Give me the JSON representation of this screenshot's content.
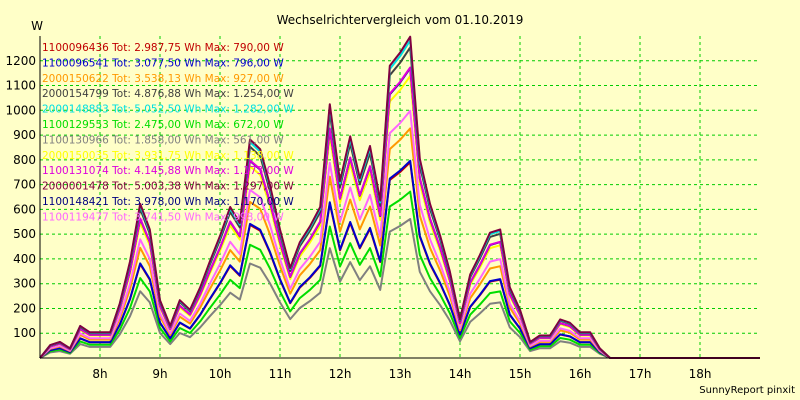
{
  "chart_data": {
    "type": "line",
    "title": "Wechselrichtervergleich vom 01.10.2019",
    "ylabel": "W",
    "credit": "SunnyReport pinxit",
    "ylim": [
      0,
      1300
    ],
    "xlim": [
      7.0,
      19.0
    ],
    "y_ticks": [
      100,
      200,
      300,
      400,
      500,
      600,
      700,
      800,
      900,
      1000,
      1100,
      1200
    ],
    "x_ticks": [
      {
        "label": "8h",
        "value": 8.0
      },
      {
        "label": "9h",
        "value": 9.0
      },
      {
        "label": "10h",
        "value": 10.0
      },
      {
        "label": "11h",
        "value": 11.0
      },
      {
        "label": "12h",
        "value": 12.0
      },
      {
        "label": "13h",
        "value": 13.0
      },
      {
        "label": "14h",
        "value": 14.0
      },
      {
        "label": "15h",
        "value": 15.0
      },
      {
        "label": "16h",
        "value": 16.0
      },
      {
        "label": "17h",
        "value": 17.0
      },
      {
        "label": "18h",
        "value": 18.0
      }
    ],
    "grid": true,
    "legend_position": "top-left",
    "x": [
      7.0,
      7.17,
      7.33,
      7.5,
      7.67,
      7.83,
      8.0,
      8.17,
      8.33,
      8.5,
      8.67,
      8.83,
      9.0,
      9.17,
      9.33,
      9.5,
      9.67,
      9.83,
      10.0,
      10.17,
      10.33,
      10.5,
      10.67,
      10.83,
      11.0,
      11.17,
      11.33,
      11.5,
      11.67,
      11.83,
      12.0,
      12.17,
      12.33,
      12.5,
      12.67,
      12.83,
      13.0,
      13.17,
      13.33,
      13.5,
      13.67,
      13.83,
      14.0,
      14.17,
      14.33,
      14.5,
      14.67,
      14.83,
      15.0,
      15.17,
      15.33,
      15.5,
      15.67,
      15.83,
      16.0,
      16.17,
      16.33,
      16.5,
      16.67,
      16.83,
      17.0,
      17.17,
      17.33,
      17.5,
      17.67,
      17.83,
      18.0,
      18.17,
      18.33,
      18.5,
      18.67,
      18.83,
      19.0
    ],
    "shape": [
      0.0,
      0.04,
      0.05,
      0.03,
      0.1,
      0.08,
      0.08,
      0.08,
      0.17,
      0.3,
      0.48,
      0.4,
      0.18,
      0.1,
      0.18,
      0.15,
      0.22,
      0.3,
      0.38,
      0.47,
      0.42,
      0.68,
      0.65,
      0.54,
      0.4,
      0.28,
      0.36,
      0.41,
      0.47,
      0.79,
      0.55,
      0.69,
      0.56,
      0.66,
      0.49,
      0.91,
      0.95,
      1.0,
      0.62,
      0.48,
      0.38,
      0.27,
      0.12,
      0.26,
      0.32,
      0.39,
      0.4,
      0.22,
      0.15,
      0.05,
      0.07,
      0.07,
      0.12,
      0.11,
      0.08,
      0.08,
      0.03,
      0.0,
      0.0,
      0.0,
      0.0,
      0.0,
      0.0,
      0.0,
      0.0,
      0.0,
      0.0,
      0.0,
      0.0,
      0.0,
      0.0,
      0.0,
      0.0
    ],
    "series": [
      {
        "label": "1100096436 Tot: 2.987,75 Wh Max: 790,00 W",
        "color": "#c00000",
        "max": 790
      },
      {
        "label": "1100096541 Tot: 3.077,50 Wh Max: 796,00 W",
        "color": "#0000cc",
        "max": 796
      },
      {
        "label": "2000150622 Tot: 3.538,13 Wh Max: 927,00 W",
        "color": "#ff9900",
        "max": 927
      },
      {
        "label": "2000154799 Tot: 4.876,88 Wh Max: 1.254,00 W",
        "color": "#404040",
        "max": 1254
      },
      {
        "label": "2000148883 Tot: 5.052,50 Wh Max: 1.282,00 W",
        "color": "#00e0e0",
        "max": 1282
      },
      {
        "label": "1100129553 Tot: 2.475,00 Wh Max: 672,00 W",
        "color": "#00dd00",
        "max": 672
      },
      {
        "label": "1100130966 Tot: 1.858,00 Wh Max: 561,00 W",
        "color": "#808080",
        "max": 561
      },
      {
        "label": "2000150035 Tot: 3.931,75 Wh Max: 1.138,00 W",
        "color": "#ffff00",
        "max": 1138
      },
      {
        "label": "1100131074 Tot: 4.145,88 Wh Max: 1.173,00 W",
        "color": "#dd00dd",
        "max": 1173
      },
      {
        "label": "2000001478 Tot: 5.003,38 Wh Max: 1.297,00 W",
        "color": "#800040",
        "max": 1297
      },
      {
        "label": "1100148421 Tot: 3.978,00 Wh Max: 1.170,00 W",
        "color": "#000080",
        "max": 1170
      },
      {
        "label": "1100119477 Tot: 3.741,50 Wh Max: 998,00 W",
        "color": "#ff66ff",
        "max": 998
      }
    ]
  }
}
